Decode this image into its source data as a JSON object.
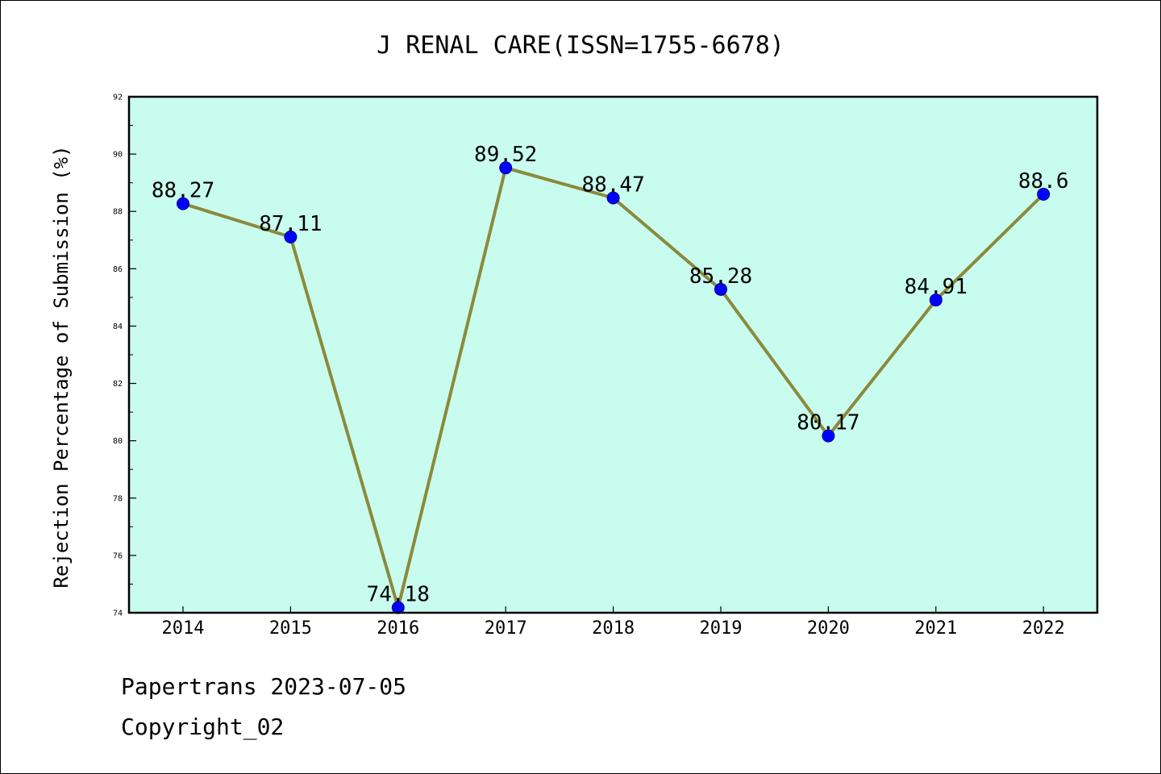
{
  "chart_data": {
    "type": "line",
    "title": "J RENAL CARE(ISSN=1755-6678)",
    "xlabel": "",
    "ylabel": "Rejection Percentage of Submission (%)",
    "categories": [
      "2014",
      "2015",
      "2016",
      "2017",
      "2018",
      "2019",
      "2020",
      "2021",
      "2022"
    ],
    "series": [
      {
        "values": [
          88.27,
          87.11,
          74.18,
          89.52,
          88.47,
          85.28,
          80.17,
          84.91,
          88.6
        ],
        "labels": [
          "88.27",
          "87.11",
          "74.18",
          "89.52",
          "88.47",
          "85.28",
          "80.17",
          "84.91",
          "88.6"
        ],
        "line_color": "#8b8a3c",
        "marker_color": "#0000ff"
      }
    ],
    "ylim": [
      74,
      92
    ],
    "yticks": [
      "74",
      "76",
      "78",
      "80",
      "82",
      "84",
      "86",
      "88",
      "90",
      "92"
    ],
    "plot_background": "#c8fcee",
    "grid": false,
    "legend": "none"
  },
  "footer": {
    "source": "Papertrans 2023-07-05",
    "copyright": "Copyright_02"
  }
}
